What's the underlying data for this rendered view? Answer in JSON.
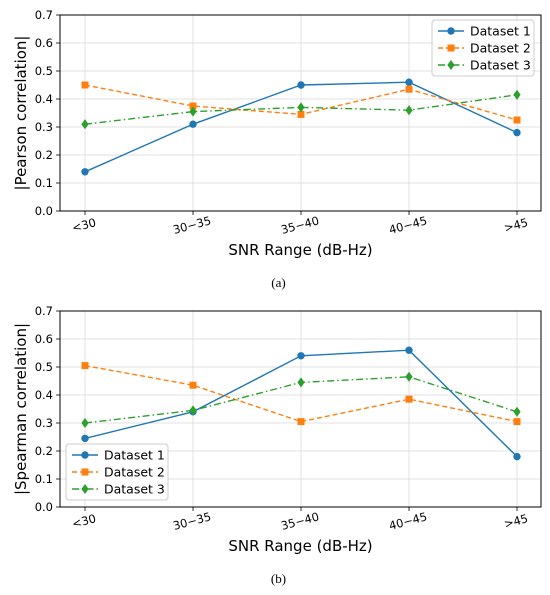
{
  "chart_data": [
    {
      "type": "line",
      "caption": "(a)",
      "categories": [
        "<30",
        "30−35",
        "35−40",
        "40−45",
        ">45"
      ],
      "xlabel": "SNR Range (dB-Hz)",
      "ylabel": "|Pearson correlation|",
      "ylim": [
        0,
        0.7
      ],
      "yticks": [
        "0.0",
        "0.1",
        "0.2",
        "0.3",
        "0.4",
        "0.5",
        "0.6",
        "0.7"
      ],
      "grid": true,
      "legend_position": "top-right",
      "series": [
        {
          "name": "Dataset 1",
          "color": "#1f77b4",
          "marker": "circle",
          "linestyle": "solid",
          "values": [
            0.14,
            0.31,
            0.45,
            0.46,
            0.28
          ]
        },
        {
          "name": "Dataset 2",
          "color": "#ff7f0e",
          "marker": "square",
          "linestyle": "dashed",
          "values": [
            0.45,
            0.375,
            0.345,
            0.435,
            0.325
          ]
        },
        {
          "name": "Dataset 3",
          "color": "#2ca02c",
          "marker": "diamond",
          "linestyle": "dashdot",
          "values": [
            0.31,
            0.355,
            0.37,
            0.36,
            0.415
          ]
        }
      ]
    },
    {
      "type": "line",
      "caption": "(b)",
      "categories": [
        "<30",
        "30−35",
        "35−40",
        "40−45",
        ">45"
      ],
      "xlabel": "SNR Range (dB-Hz)",
      "ylabel": "|Spearman correlation|",
      "ylim": [
        0,
        0.7
      ],
      "yticks": [
        "0.0",
        "0.1",
        "0.2",
        "0.3",
        "0.4",
        "0.5",
        "0.6",
        "0.7"
      ],
      "grid": true,
      "legend_position": "bottom-left",
      "series": [
        {
          "name": "Dataset 1",
          "color": "#1f77b4",
          "marker": "circle",
          "linestyle": "solid",
          "values": [
            0.245,
            0.34,
            0.54,
            0.56,
            0.18
          ]
        },
        {
          "name": "Dataset 2",
          "color": "#ff7f0e",
          "marker": "square",
          "linestyle": "dashed",
          "values": [
            0.505,
            0.435,
            0.305,
            0.385,
            0.305
          ]
        },
        {
          "name": "Dataset 3",
          "color": "#2ca02c",
          "marker": "diamond",
          "linestyle": "dashdot",
          "values": [
            0.3,
            0.345,
            0.445,
            0.465,
            0.34
          ]
        }
      ]
    }
  ]
}
